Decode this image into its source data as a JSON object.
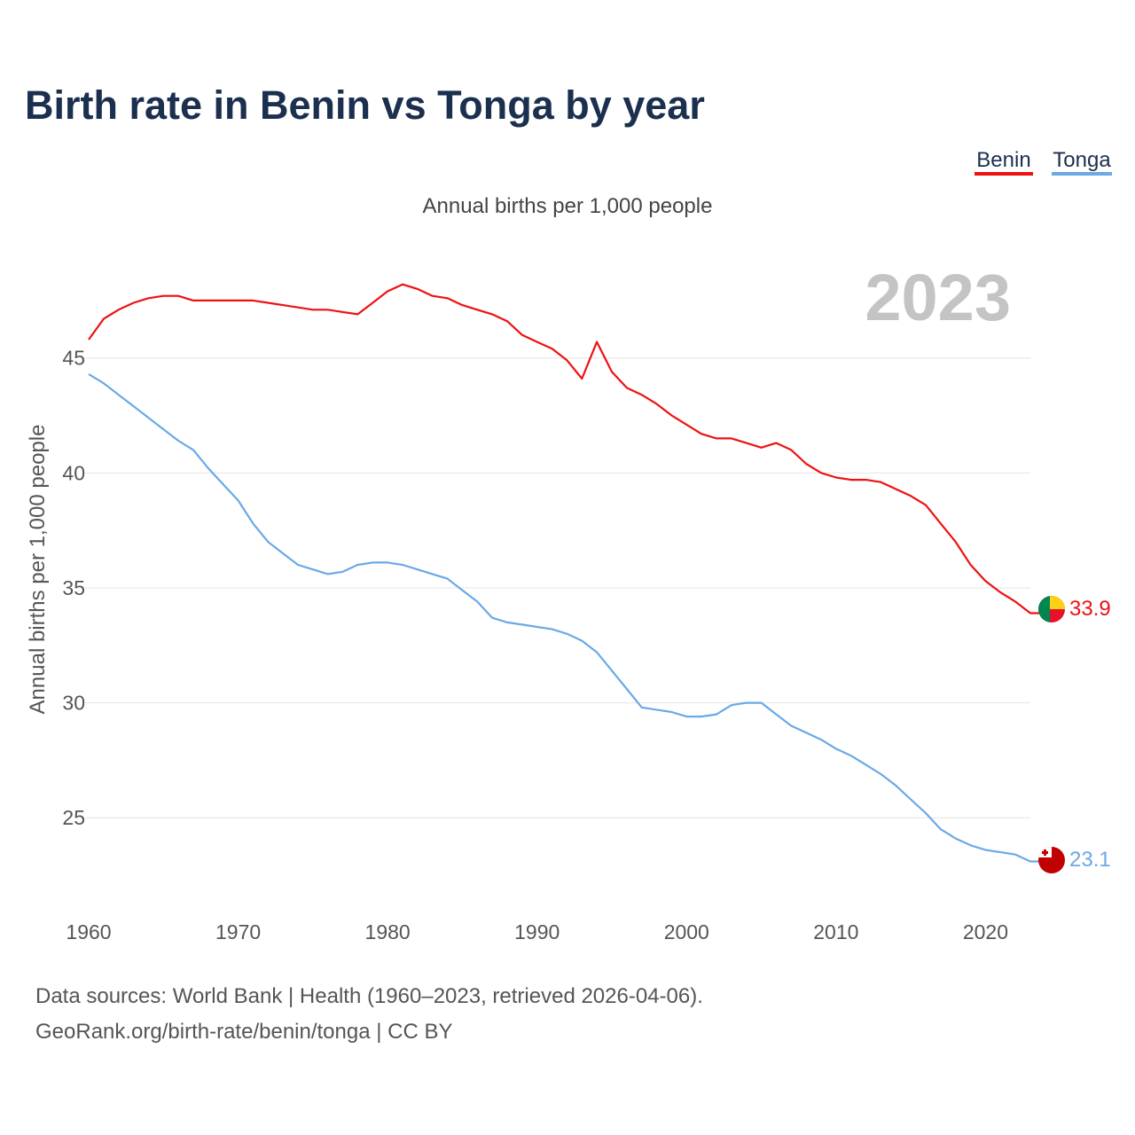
{
  "title": "Birth rate in Benin vs Tonga by year",
  "year_display": "2023",
  "footer": {
    "line1": "Data sources: World Bank | Health (1960–2023, retrieved 2026-04-06).",
    "line2": "GeoRank.org/birth-rate/benin/tonga | CC BY"
  },
  "colors": {
    "benin": "#ee1111",
    "tonga": "#6aa9e6",
    "title": "#1b2f4e",
    "grid": "#e4e4e4"
  },
  "chart_data": {
    "type": "line",
    "title": "Birth rate in Benin vs Tonga by year",
    "subtitle": "Annual births per 1,000 people",
    "xlabel": "",
    "ylabel": "Annual births per 1,000 people",
    "xlim": [
      1960,
      2023
    ],
    "ylim": [
      22,
      49
    ],
    "x_ticks": [
      1960,
      1970,
      1980,
      1990,
      2000,
      2010,
      2020
    ],
    "y_ticks": [
      25,
      30,
      35,
      40,
      45
    ],
    "legend_position": "top-right",
    "x": [
      1960,
      1961,
      1962,
      1963,
      1964,
      1965,
      1966,
      1967,
      1968,
      1969,
      1970,
      1971,
      1972,
      1973,
      1974,
      1975,
      1976,
      1977,
      1978,
      1979,
      1980,
      1981,
      1982,
      1983,
      1984,
      1985,
      1986,
      1987,
      1988,
      1989,
      1990,
      1991,
      1992,
      1993,
      1994,
      1995,
      1996,
      1997,
      1998,
      1999,
      2000,
      2001,
      2002,
      2003,
      2004,
      2005,
      2006,
      2007,
      2008,
      2009,
      2010,
      2011,
      2012,
      2013,
      2014,
      2015,
      2016,
      2017,
      2018,
      2019,
      2020,
      2021,
      2022,
      2023
    ],
    "series": [
      {
        "name": "Benin",
        "color": "#ee1111",
        "end_label": "33.9",
        "values": [
          45.8,
          46.7,
          47.1,
          47.4,
          47.6,
          47.7,
          47.7,
          47.5,
          47.5,
          47.5,
          47.5,
          47.5,
          47.4,
          47.3,
          47.2,
          47.1,
          47.1,
          47.0,
          46.9,
          47.4,
          47.9,
          48.2,
          48.0,
          47.7,
          47.6,
          47.3,
          47.1,
          46.9,
          46.6,
          46.0,
          45.7,
          45.4,
          44.9,
          44.1,
          45.7,
          44.4,
          43.7,
          43.4,
          43.0,
          42.5,
          42.1,
          41.7,
          41.5,
          41.5,
          41.3,
          41.1,
          41.3,
          41.0,
          40.4,
          40.0,
          39.8,
          39.7,
          39.7,
          39.6,
          39.3,
          39.0,
          38.6,
          37.8,
          37.0,
          36.0,
          35.3,
          34.8,
          34.4,
          33.9
        ]
      },
      {
        "name": "Tonga",
        "color": "#6aa9e6",
        "end_label": "23.1",
        "values": [
          44.3,
          43.9,
          43.4,
          42.9,
          42.4,
          41.9,
          41.4,
          41.0,
          40.2,
          39.5,
          38.8,
          37.8,
          37.0,
          36.5,
          36.0,
          35.8,
          35.6,
          35.7,
          36.0,
          36.1,
          36.1,
          36.0,
          35.8,
          35.6,
          35.4,
          34.9,
          34.4,
          33.7,
          33.5,
          33.4,
          33.3,
          33.2,
          33.0,
          32.7,
          32.2,
          31.4,
          30.6,
          29.8,
          29.7,
          29.6,
          29.4,
          29.4,
          29.5,
          29.9,
          30.0,
          30.0,
          29.5,
          29.0,
          28.7,
          28.4,
          28.0,
          27.7,
          27.3,
          26.9,
          26.4,
          25.8,
          25.2,
          24.5,
          24.1,
          23.8,
          23.6,
          23.5,
          23.4,
          23.1
        ]
      }
    ]
  }
}
